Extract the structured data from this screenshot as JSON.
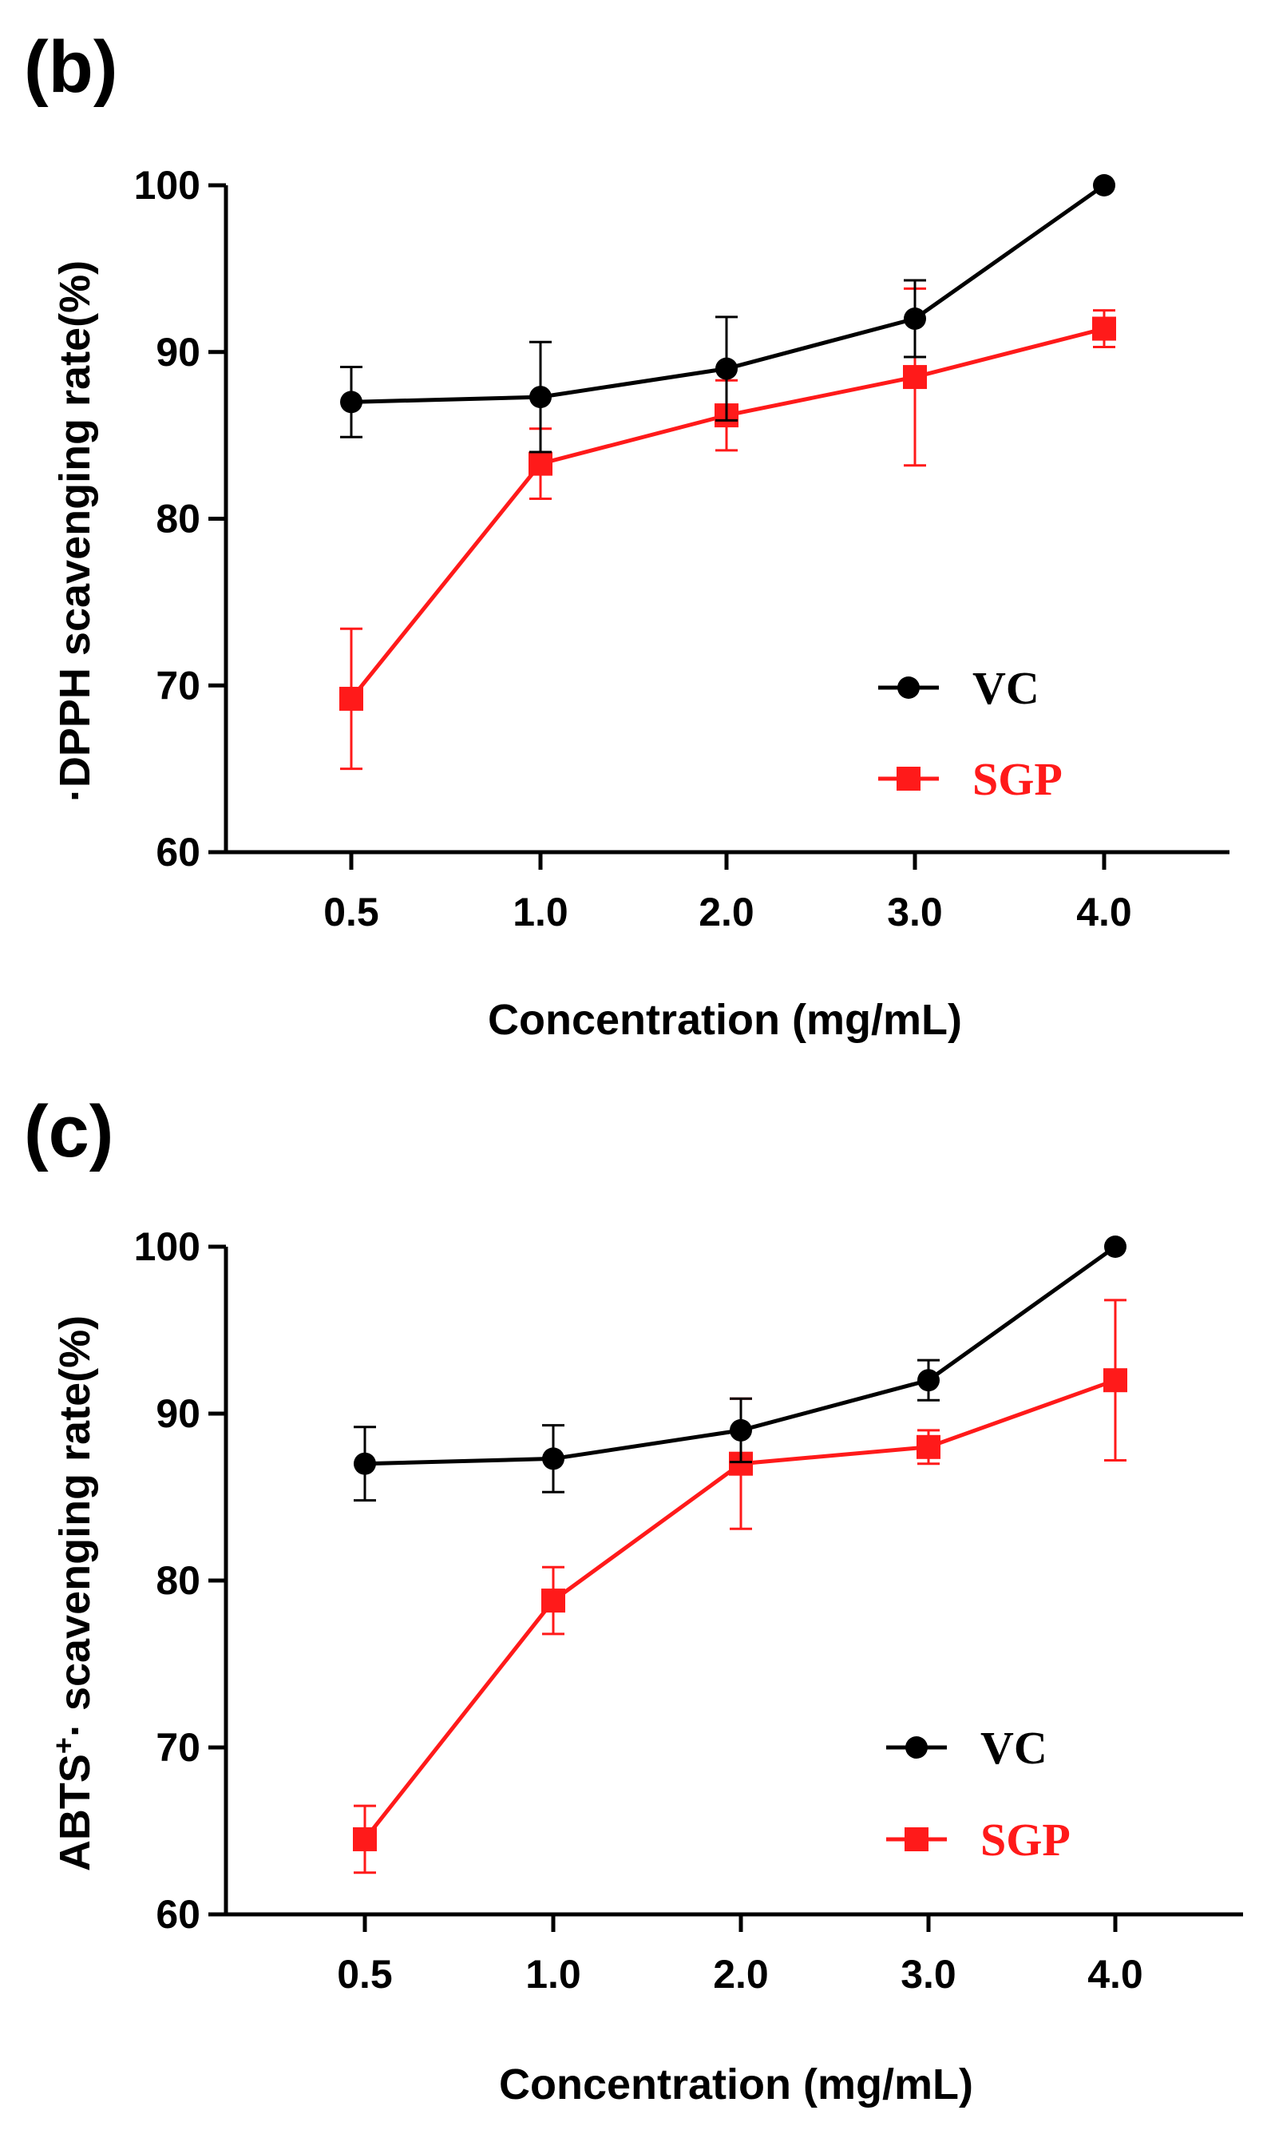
{
  "chart_data": [
    {
      "type": "line",
      "panel_label": "(b)",
      "xlabel": "Concentration (mg/mL)",
      "ylabel": "·DPPH scavenging rate(%)",
      "categories": [
        "0.5",
        "1.0",
        "2.0",
        "3.0",
        "4.0"
      ],
      "ylim": [
        60,
        100
      ],
      "yticks": [
        "60",
        "70",
        "80",
        "90",
        "100"
      ],
      "legend_position": "bottom-right",
      "series": [
        {
          "name": "VC",
          "color": "#000000",
          "marker": "circle",
          "values": [
            87.0,
            87.3,
            89.0,
            92.0,
            100.0
          ],
          "errors": [
            2.1,
            3.3,
            3.1,
            2.3,
            0.0
          ]
        },
        {
          "name": "SGP",
          "color": "#ff1a1a",
          "marker": "square",
          "values": [
            69.2,
            83.3,
            86.2,
            88.5,
            91.4
          ],
          "errors": [
            4.2,
            2.1,
            2.1,
            5.3,
            1.1
          ]
        }
      ]
    },
    {
      "type": "line",
      "panel_label": "(c)",
      "xlabel": "Concentration (mg/mL)",
      "ylabel_main": "ABTS",
      "ylabel_sup": "+",
      "ylabel_rest": "· scavenging rate(%)",
      "categories": [
        "0.5",
        "1.0",
        "2.0",
        "3.0",
        "4.0"
      ],
      "ylim": [
        60,
        100
      ],
      "yticks": [
        "60",
        "70",
        "80",
        "90",
        "100"
      ],
      "legend_position": "bottom-right",
      "series": [
        {
          "name": "VC",
          "color": "#000000",
          "marker": "circle",
          "values": [
            87.0,
            87.3,
            89.0,
            92.0,
            100.0
          ],
          "errors": [
            2.2,
            2.0,
            1.9,
            1.2,
            0.0
          ]
        },
        {
          "name": "SGP",
          "color": "#ff1a1a",
          "marker": "square",
          "values": [
            64.5,
            78.8,
            87.0,
            88.0,
            92.0
          ],
          "errors": [
            2.0,
            2.0,
            3.9,
            1.0,
            4.8
          ]
        }
      ]
    }
  ]
}
